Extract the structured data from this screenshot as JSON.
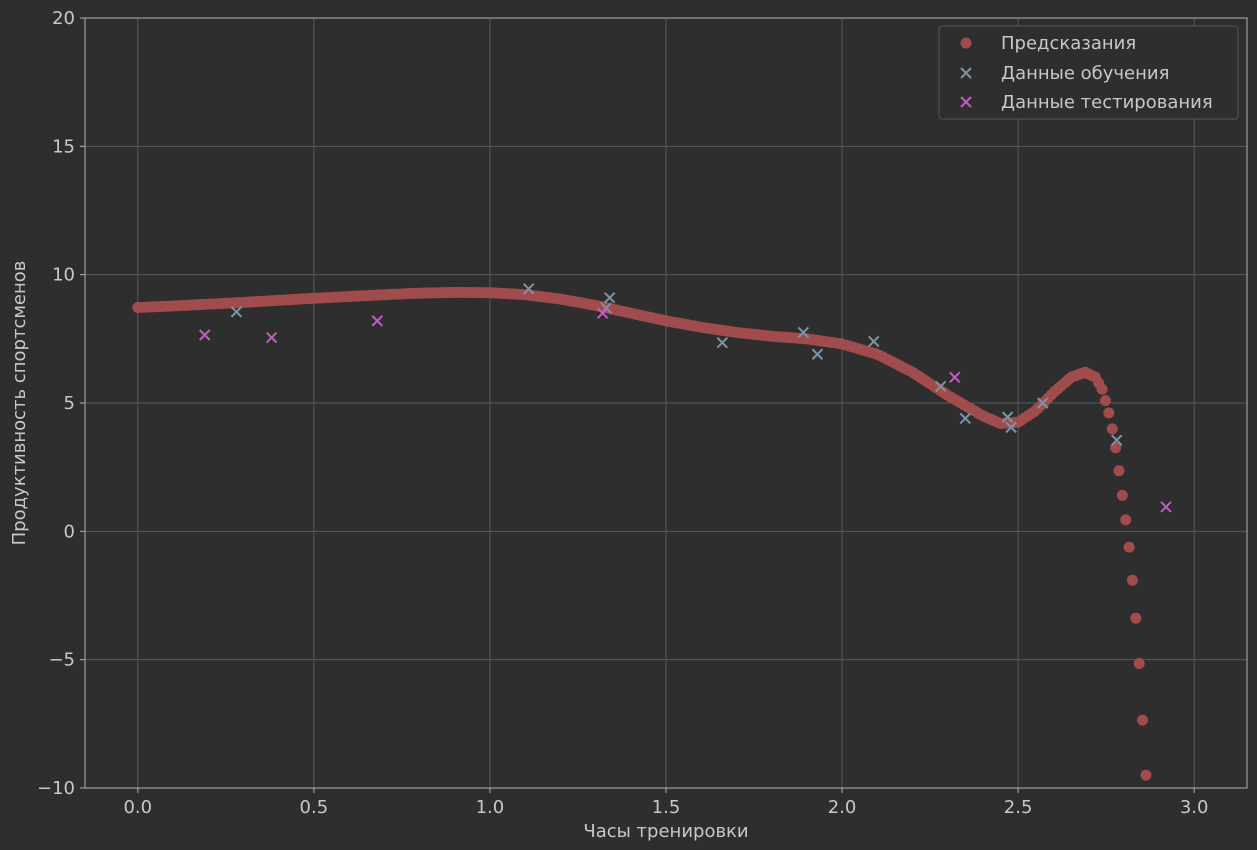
{
  "chart_data": {
    "type": "scatter",
    "title": "",
    "xlabel": "Часы тренировки",
    "ylabel": "Продуктивность спортсменов",
    "xlim": [
      -0.15,
      3.15
    ],
    "ylim": [
      -10,
      20
    ],
    "xticks": [
      0.0,
      0.5,
      1.0,
      1.5,
      2.0,
      2.5,
      3.0
    ],
    "xtick_labels": [
      "0.0",
      "0.5",
      "1.0",
      "1.5",
      "2.0",
      "2.5",
      "3.0"
    ],
    "yticks": [
      -10,
      -5,
      0,
      5,
      10,
      15,
      20
    ],
    "ytick_labels": [
      "−10",
      "−5",
      "0",
      "5",
      "10",
      "15",
      "20"
    ],
    "grid": true,
    "legend_position": "top-right",
    "colors": {
      "background": "#2e2e2e",
      "grid": "#5a5a5a",
      "axes": "#b0b0b0",
      "predictions": "#a14c4c",
      "train": "#7f93a8",
      "test": "#c05fc0"
    },
    "series": [
      {
        "name": "Предсказания",
        "marker": "circle",
        "curve": [
          [
            0.0,
            8.72
          ],
          [
            0.1,
            8.78
          ],
          [
            0.2,
            8.85
          ],
          [
            0.3,
            8.92
          ],
          [
            0.4,
            9.0
          ],
          [
            0.5,
            9.08
          ],
          [
            0.6,
            9.15
          ],
          [
            0.7,
            9.22
          ],
          [
            0.8,
            9.28
          ],
          [
            0.9,
            9.31
          ],
          [
            1.0,
            9.3
          ],
          [
            1.1,
            9.22
          ],
          [
            1.2,
            9.05
          ],
          [
            1.3,
            8.8
          ],
          [
            1.4,
            8.5
          ],
          [
            1.5,
            8.2
          ],
          [
            1.6,
            7.95
          ],
          [
            1.7,
            7.75
          ],
          [
            1.8,
            7.6
          ],
          [
            1.9,
            7.5
          ],
          [
            2.0,
            7.3
          ],
          [
            2.1,
            6.9
          ],
          [
            2.2,
            6.2
          ],
          [
            2.3,
            5.3
          ],
          [
            2.4,
            4.5
          ],
          [
            2.45,
            4.2
          ],
          [
            2.5,
            4.25
          ],
          [
            2.55,
            4.7
          ],
          [
            2.6,
            5.4
          ],
          [
            2.65,
            6.0
          ],
          [
            2.69,
            6.2
          ],
          [
            2.72,
            6.0
          ],
          [
            2.74,
            5.5
          ],
          [
            2.76,
            4.5
          ],
          [
            2.77,
            3.8
          ],
          [
            2.78,
            3.0
          ],
          [
            2.79,
            2.0
          ],
          [
            2.8,
            1.0
          ],
          [
            2.81,
            0.0
          ],
          [
            2.82,
            -1.2
          ],
          [
            2.83,
            -2.7
          ],
          [
            2.84,
            -4.3
          ],
          [
            2.85,
            -6.5
          ],
          [
            2.86,
            -9.0
          ],
          [
            2.863,
            -9.5
          ]
        ]
      },
      {
        "name": "Данные обучения",
        "marker": "x",
        "points": [
          [
            0.28,
            8.55
          ],
          [
            1.11,
            9.45
          ],
          [
            1.34,
            9.1
          ],
          [
            1.33,
            8.7
          ],
          [
            1.66,
            7.35
          ],
          [
            1.89,
            7.75
          ],
          [
            1.93,
            6.9
          ],
          [
            2.09,
            7.4
          ],
          [
            2.28,
            5.65
          ],
          [
            2.35,
            4.4
          ],
          [
            2.47,
            4.45
          ],
          [
            2.48,
            4.05
          ],
          [
            2.57,
            5.0
          ],
          [
            2.78,
            3.55
          ]
        ]
      },
      {
        "name": "Данные тестирования",
        "marker": "x",
        "points": [
          [
            0.19,
            7.65
          ],
          [
            0.38,
            7.55
          ],
          [
            0.68,
            8.2
          ],
          [
            1.32,
            8.5
          ],
          [
            2.32,
            6.0
          ],
          [
            2.92,
            0.95
          ]
        ]
      }
    ]
  }
}
